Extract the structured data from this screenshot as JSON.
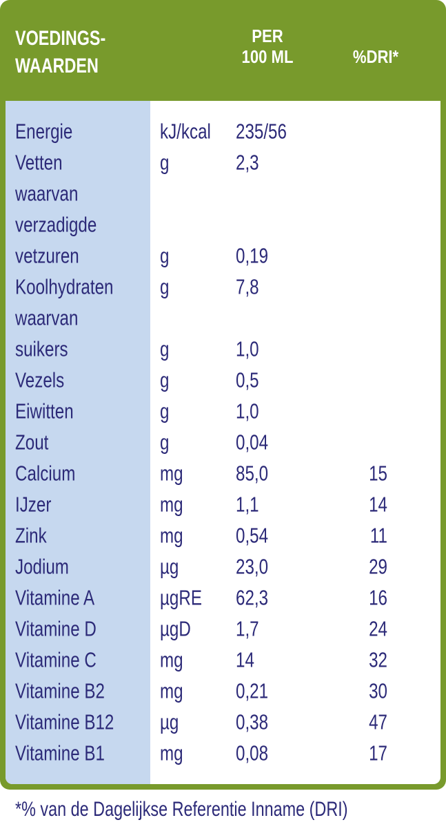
{
  "header": {
    "title": [
      "VOEDINGS-",
      "WAARDEN"
    ],
    "per": [
      "PER",
      "100 ML"
    ],
    "dri": "%DRI*"
  },
  "table": {
    "rows": [
      {
        "name": "Energie",
        "unit": "kJ/kcal",
        "value": "235/56"
      },
      {
        "name": "Vetten",
        "unit": "g",
        "value": "2,3"
      },
      {
        "name": "waarvan"
      },
      {
        "name": "verzadigde"
      },
      {
        "name": "vetzuren",
        "unit": "g",
        "value": "0,19"
      },
      {
        "name": "Koolhydraten",
        "unit": "g",
        "value": "7,8"
      },
      {
        "name": "waarvan"
      },
      {
        "name": "suikers",
        "unit": "g",
        "value": "1,0"
      },
      {
        "name": "Vezels",
        "unit": "g",
        "value": "0,5"
      },
      {
        "name": "Eiwitten",
        "unit": "g",
        "value": "1,0"
      },
      {
        "name": "Zout",
        "unit": "g",
        "value": "0,04"
      },
      {
        "name": "Calcium",
        "unit": "mg",
        "value": "85,0",
        "dri": 15
      },
      {
        "name": "IJzer",
        "unit": "mg",
        "value": "1,1",
        "dri": 14
      },
      {
        "name": "Zink",
        "unit": "mg",
        "value": "0,54",
        "dri": 11
      },
      {
        "name": "Jodium",
        "unit": "µg",
        "value": "23,0",
        "dri": 29
      },
      {
        "name": "Vitamine A",
        "unit": "µgRE",
        "value": "62,3",
        "dri": 16
      },
      {
        "name": "Vitamine D",
        "unit": "µgD",
        "value": "1,7",
        "dri": 24
      },
      {
        "name": "Vitamine C",
        "unit": "mg",
        "value": "14",
        "dri": 32
      },
      {
        "name": "Vitamine B2",
        "unit": "mg",
        "value": "0,21",
        "dri": 30
      },
      {
        "name": "Vitamine B12",
        "unit": "µg",
        "value": "0,38",
        "dri": 47
      },
      {
        "name": "Vitamine B1",
        "unit": "mg",
        "value": "0,08",
        "dri": 17
      }
    ]
  },
  "footnote": "*% van de Dagelijkse Referentie Inname (DRI)"
}
